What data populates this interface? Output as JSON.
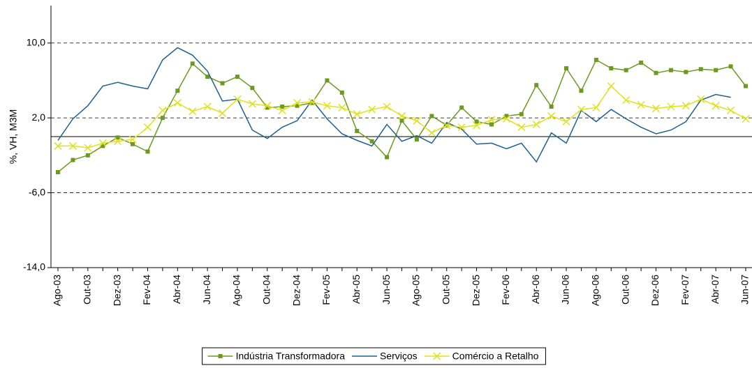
{
  "chart_data": {
    "type": "line",
    "y_label": "%, VH, M3M",
    "categories": [
      "Ago-03",
      null,
      "Out-03",
      null,
      "Dez-03",
      null,
      "Fev-04",
      null,
      "Abr-04",
      null,
      "Jun-04",
      null,
      "Ago-04",
      null,
      "Out-04",
      null,
      "Dez-04",
      null,
      "Fev-05",
      null,
      "Abr-05",
      null,
      "Jun-05",
      null,
      "Ago-05",
      null,
      "Out-05",
      null,
      "Dez-05",
      null,
      "Fev-06",
      null,
      "Abr-06",
      null,
      "Jun-06",
      null,
      "Ago-06",
      null,
      "Out-06",
      null,
      "Dez-06",
      null,
      "Fev-07",
      null,
      "Abr-07",
      null,
      "Jun-07"
    ],
    "series": [
      {
        "name": "Indústria Transformadora",
        "color": "#6a9a1f",
        "marker": "square",
        "values": [
          -3.8,
          -2.5,
          -2.0,
          -1.0,
          -0.1,
          -0.8,
          -1.6,
          2.0,
          4.9,
          7.8,
          6.4,
          5.7,
          6.4,
          5.2,
          3.1,
          3.2,
          3.3,
          3.6,
          6.0,
          4.7,
          0.6,
          -0.5,
          -2.2,
          1.7,
          -0.3,
          2.2,
          1.2,
          3.1,
          1.6,
          1.3,
          2.2,
          2.4,
          5.5,
          3.2,
          7.3,
          4.9,
          8.2,
          7.3,
          7.1,
          7.9,
          6.8,
          7.1,
          6.9,
          7.2,
          7.1,
          7.5,
          5.4
        ]
      },
      {
        "name": "Serviços",
        "color": "#1f5f8b",
        "marker": "none",
        "values": [
          -0.4,
          1.9,
          3.3,
          5.4,
          5.8,
          5.4,
          5.1,
          8.2,
          9.5,
          8.7,
          7.0,
          3.8,
          4.0,
          0.7,
          -0.2,
          1.0,
          1.7,
          3.9,
          1.9,
          0.3,
          -0.4,
          -1.0,
          1.3,
          -0.5,
          0.1,
          -0.7,
          1.5,
          0.8,
          -0.8,
          -0.7,
          -1.3,
          -0.7,
          -2.7,
          0.4,
          -0.7,
          2.8,
          1.6,
          2.9,
          1.9,
          1.0,
          0.3,
          0.7,
          1.6,
          3.9,
          4.5,
          4.2,
          null
        ]
      },
      {
        "name": "Comércio a Retalho",
        "color": "#e0e020",
        "marker": "x",
        "values": [
          -1.0,
          -1.0,
          -1.2,
          -0.7,
          -0.5,
          -0.3,
          1.0,
          2.8,
          3.6,
          2.7,
          3.2,
          2.5,
          4.0,
          3.5,
          3.3,
          2.8,
          3.6,
          3.7,
          3.3,
          3.1,
          2.4,
          2.9,
          3.2,
          2.2,
          1.7,
          0.4,
          1.2,
          1.0,
          1.2,
          1.8,
          1.9,
          1.0,
          1.3,
          2.2,
          1.6,
          2.9,
          3.1,
          5.4,
          3.9,
          3.4,
          3.0,
          3.2,
          3.3,
          4.0,
          3.3,
          2.8,
          1.9
        ]
      }
    ],
    "ylim": [
      -14,
      14
    ],
    "yticks": [
      {
        "value": -14,
        "label": "-14,0"
      },
      {
        "value": -6,
        "label": "-6,0"
      },
      {
        "value": 2,
        "label": "2,0"
      },
      {
        "value": 10,
        "label": "10,0"
      }
    ],
    "grid": true,
    "legend": "bottom"
  }
}
